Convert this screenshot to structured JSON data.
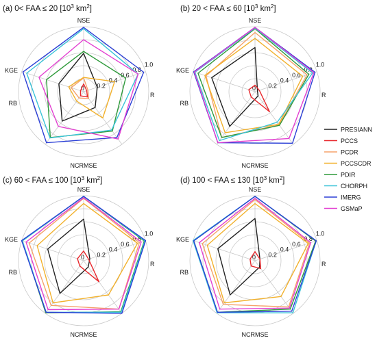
{
  "chart_data": [
    {
      "type": "radar",
      "title": "(a) 0< FAA ≤ 20 [10",
      "title_sup": "3",
      "title_tail": " km",
      "title_sup2": "2",
      "title_end": "]",
      "axes": [
        "NSE",
        "R",
        "NCRMSE",
        "RB",
        "KGE"
      ],
      "rlim": [
        0,
        1
      ],
      "ticks": [
        "0",
        "0.2",
        "0.4",
        "0.6",
        "0.8",
        "1.0"
      ],
      "series": [
        {
          "name": "PRESIANN",
          "values": [
            0.59,
            0.22,
            0.3,
            0.56,
            0.4
          ]
        },
        {
          "name": "PCCS",
          "values": [
            0.12,
            0.05,
            0.1,
            0.08,
            0.05
          ]
        },
        {
          "name": "PCDR",
          "values": [
            0.21,
            0.07,
            0.13,
            0.12,
            0.2
          ]
        },
        {
          "name": "PCCSCDR",
          "values": [
            0.22,
            0.5,
            0.5,
            0.18,
            0.24
          ]
        },
        {
          "name": "PDIR",
          "values": [
            0.62,
            0.68,
            0.75,
            0.87,
            0.6
          ]
        },
        {
          "name": "CHORPH",
          "values": [
            0.97,
            0.88,
            0.73,
            0.88,
            0.92
          ]
        },
        {
          "name": "IMERG",
          "values": [
            0.99,
            0.97,
            0.87,
            0.97,
            0.98
          ]
        },
        {
          "name": "GSMaP",
          "values": [
            0.8,
            0.88,
            0.9,
            0.66,
            0.72
          ]
        }
      ]
    },
    {
      "type": "radar",
      "title": "(b) 20 < FAA ≤ 60 [10",
      "title_sup": "3",
      "title_tail": " km",
      "title_sup2": "2",
      "title_end": "]",
      "axes": [
        "NSE",
        "R",
        "NCRMSE",
        "RB",
        "KGE"
      ],
      "rlim": [
        0,
        1
      ],
      "ticks": [
        "0",
        "0.2",
        "0.4",
        "0.6",
        "0.8",
        "1.0"
      ],
      "series": [
        {
          "name": "PRESIANN",
          "values": [
            0.68,
            0.04,
            0.08,
            0.66,
            0.7
          ]
        },
        {
          "name": "PCCS",
          "values": [
            0.1,
            0.07,
            0.38,
            0.1,
            0.1
          ]
        },
        {
          "name": "PCDR",
          "values": [
            0.91,
            0.84,
            0.63,
            0.87,
            0.79
          ]
        },
        {
          "name": "PCCSCDR",
          "values": [
            0.82,
            0.77,
            0.62,
            0.78,
            0.81
          ]
        },
        {
          "name": "PDIR",
          "values": [
            0.97,
            0.87,
            0.64,
            0.87,
            0.92
          ]
        },
        {
          "name": "CHORPH",
          "values": [
            0.98,
            0.93,
            0.58,
            0.93,
            0.97
          ]
        },
        {
          "name": "IMERG",
          "values": [
            0.99,
            0.97,
            0.98,
            0.97,
            0.99
          ]
        },
        {
          "name": "GSMaP",
          "values": [
            0.99,
            0.95,
            0.89,
            0.97,
            0.98
          ]
        }
      ]
    },
    {
      "type": "radar",
      "title": "(c) 60 < FAA ≤ 100 [10",
      "title_sup": "3",
      "title_tail": " km",
      "title_sup2": "2",
      "title_end": "]",
      "axes": [
        "NSE",
        "R",
        "NCRMSE",
        "RB",
        "KGE"
      ],
      "rlim": [
        0,
        1
      ],
      "ticks": [
        "0",
        "0.2",
        "0.4",
        "0.6",
        "0.8",
        "1.0"
      ],
      "series": [
        {
          "name": "PRESIANN",
          "values": [
            0.64,
            0.1,
            0.12,
            0.62,
            0.58
          ]
        },
        {
          "name": "PCCS",
          "values": [
            0.15,
            0.08,
            0.4,
            0.1,
            0.1
          ]
        },
        {
          "name": "PCDR",
          "values": [
            0.96,
            0.9,
            0.92,
            0.85,
            0.88
          ]
        },
        {
          "name": "PCCSCDR",
          "values": [
            0.88,
            0.87,
            0.65,
            0.8,
            0.75
          ]
        },
        {
          "name": "PDIR",
          "values": [
            0.99,
            0.98,
            0.97,
            0.99,
            0.99
          ]
        },
        {
          "name": "CHORPH",
          "values": [
            0.99,
            0.99,
            0.98,
            0.98,
            0.99
          ]
        },
        {
          "name": "IMERG",
          "values": [
            0.99,
            1.0,
            1.0,
            0.98,
            1.0
          ]
        },
        {
          "name": "GSMaP",
          "values": [
            0.97,
            0.93,
            0.92,
            0.93,
            0.93
          ]
        }
      ]
    },
    {
      "type": "radar",
      "title": "(d) 100 < FAA ≤ 130 [10",
      "title_sup": "3",
      "title_tail": " km",
      "title_sup2": "2",
      "title_end": "]",
      "axes": [
        "NSE",
        "R",
        "NCRMSE",
        "RB",
        "KGE"
      ],
      "rlim": [
        0,
        1
      ],
      "ticks": [
        "0",
        "0.2",
        "0.4",
        "0.6",
        "0.8",
        "1.0"
      ],
      "series": [
        {
          "name": "PRESIANN",
          "values": [
            0.65,
            0.08,
            0.12,
            0.65,
            0.6
          ]
        },
        {
          "name": "PCCS",
          "values": [
            0.14,
            0.08,
            0.15,
            0.1,
            0.08
          ]
        },
        {
          "name": "PCDR",
          "values": [
            0.94,
            0.88,
            0.88,
            0.83,
            0.85
          ]
        },
        {
          "name": "PCCSCDR",
          "values": [
            0.88,
            0.86,
            0.68,
            0.8,
            0.77
          ]
        },
        {
          "name": "PDIR",
          "values": [
            0.99,
            0.98,
            0.92,
            0.98,
            0.99
          ]
        },
        {
          "name": "CHORPH",
          "values": [
            0.99,
            0.99,
            0.99,
            0.99,
            1.0
          ]
        },
        {
          "name": "IMERG",
          "values": [
            0.99,
            0.99,
            0.96,
            0.98,
            0.99
          ]
        },
        {
          "name": "GSMaP",
          "values": [
            0.96,
            0.9,
            0.9,
            0.92,
            0.9
          ]
        }
      ]
    }
  ],
  "legend": {
    "placement": "right",
    "entries": [
      "PRESIANN",
      "PCCS",
      "PCDR",
      "PCCSCDR",
      "PDIR",
      "CHORPH",
      "IMERG",
      "GSMaP"
    ]
  },
  "colors": {
    "PRESIANN": "#222222",
    "PCCS": "#e8262b",
    "PCDR": "#f5a26a",
    "PCCSCDR": "#f2b12c",
    "PDIR": "#2e9a3a",
    "CHORPH": "#3ac3d8",
    "IMERG": "#2b3fd6",
    "GSMaP": "#e33fd1",
    "grid": "#c8c8c8"
  }
}
